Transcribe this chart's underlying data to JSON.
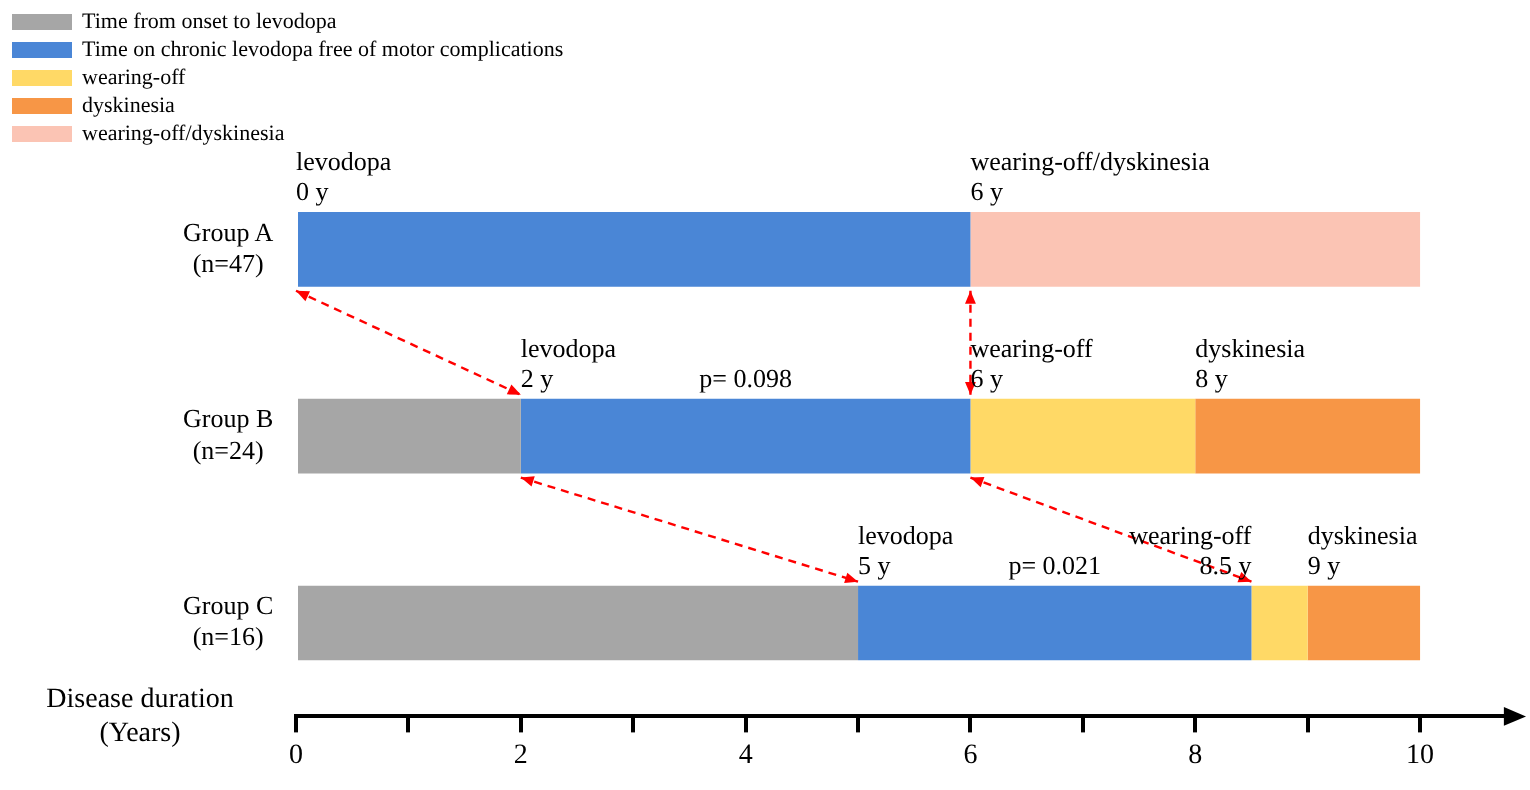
{
  "chart_data": {
    "type": "bar",
    "orientation": "horizontal",
    "stacked": true,
    "legend": "top left",
    "grid": false,
    "categories": [
      "Group A\n(n=47)",
      "Group B\n(n=24)",
      "Group C\n(n=16)"
    ],
    "series": [
      {
        "name": "Time from onset to levodopa",
        "color": "#a6a6a6",
        "values": [
          null,
          2,
          5
        ]
      },
      {
        "name": "Time on chronic levodopa free of motor complications",
        "color": "#4a86d6",
        "values": [
          6,
          4,
          3.5
        ]
      },
      {
        "name": "wearing-off",
        "color": "#ffd966",
        "values": [
          null,
          2,
          0.5
        ]
      },
      {
        "name": "dyskinesia",
        "color": "#f79646",
        "values": [
          null,
          2,
          1
        ]
      },
      {
        "name": "wearing-off/dyskinesia",
        "color": "#fbc4b4",
        "values": [
          4,
          null,
          null
        ]
      }
    ],
    "xlabel": "Disease duration\n(Years)",
    "xlim": [
      0,
      10.8
    ],
    "xticks": [
      0,
      {
        "value": 1,
        "label": null
      },
      2,
      {
        "value": 3,
        "label": null
      },
      4,
      {
        "value": 5,
        "label": null
      },
      6,
      {
        "value": 7,
        "label": null
      },
      8,
      {
        "value": 9,
        "label": null
      },
      10
    ],
    "annotations": [
      {
        "text": "levodopa\n0 y",
        "x": 0,
        "y": "Group A\n(n=47)"
      },
      {
        "text": "wearing-off/dyskinesia\n6 y",
        "x": 6,
        "y": "Group A\n(n=47)"
      },
      {
        "text": "levodopa\n2 y",
        "x": 2,
        "y": "Group B\n(n=24)"
      },
      "p= 0.098",
      {
        "text": "wearing-off\n6 y",
        "x": 6,
        "y": "Group B\n(n=24)"
      },
      {
        "text": "dyskinesia\n8 y",
        "x": 8,
        "y": "Group B\n(n=24)"
      },
      {
        "text": "levodopa\n5 y",
        "x": 5,
        "y": "Group C\n(n=16)"
      },
      "p= 0.021",
      {
        "text": "wearing-off\n8.5 y",
        "x": 8.5,
        "y": "Group C\n(n=16)"
      },
      {
        "text": "dyskinesia\n9 y",
        "x": 9,
        "y": "Group C\n(n=16)"
      }
    ]
  }
}
